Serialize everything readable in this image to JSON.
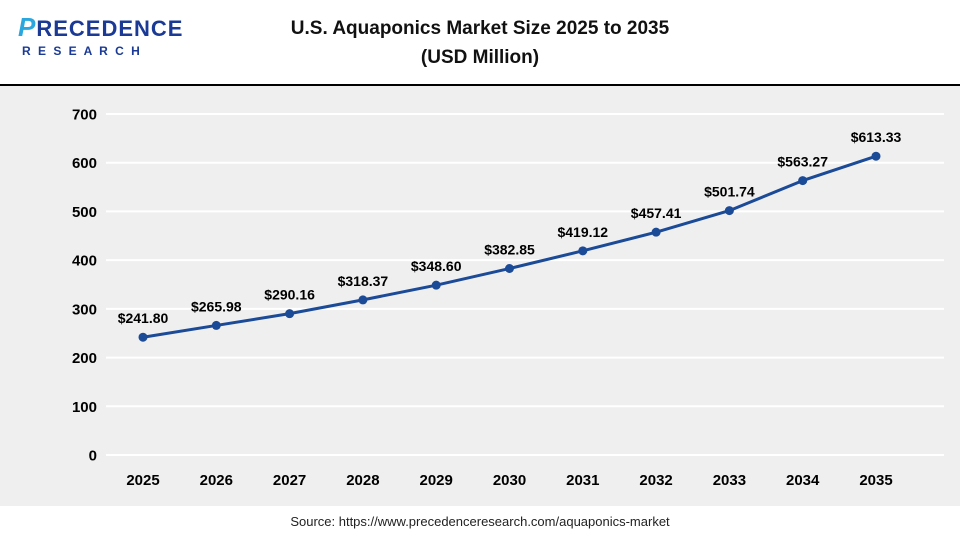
{
  "header": {
    "logo": {
      "mark": "P",
      "name_rest": "RECEDENCE",
      "subline": "R E S E A R C H"
    },
    "title_line1": "U.S. Aquaponics Market Size 2025 to 2035",
    "title_line2": "(USD Million)"
  },
  "chart_data": {
    "type": "line",
    "title": "U.S. Aquaponics Market Size 2025 to 2035 (USD Million)",
    "categories": [
      "2025",
      "2026",
      "2027",
      "2028",
      "2029",
      "2030",
      "2031",
      "2032",
      "2033",
      "2034",
      "2035"
    ],
    "values": [
      241.8,
      265.98,
      290.16,
      318.37,
      348.6,
      382.85,
      419.12,
      457.41,
      501.74,
      563.27,
      613.33
    ],
    "point_labels": [
      "$241.80",
      "$265.98",
      "$290.16",
      "$318.37",
      "$348.60",
      "$382.85",
      "$419.12",
      "$457.41",
      "$501.74",
      "$563.27",
      "$613.33"
    ],
    "xlabel": "",
    "ylabel": "",
    "ylim": [
      0,
      700
    ],
    "yticks": [
      0,
      100,
      200,
      300,
      400,
      500,
      600,
      700
    ],
    "grid": true,
    "legend": "none",
    "line_color": "#1b4a97",
    "plot_bg": "#efefef",
    "gridline_color": "#ffffff",
    "tick_label_color": "#000000",
    "data_label_color": "#000000"
  },
  "footer": {
    "source": "Source: https://www.precedenceresearch.com/aquaponics-market"
  }
}
